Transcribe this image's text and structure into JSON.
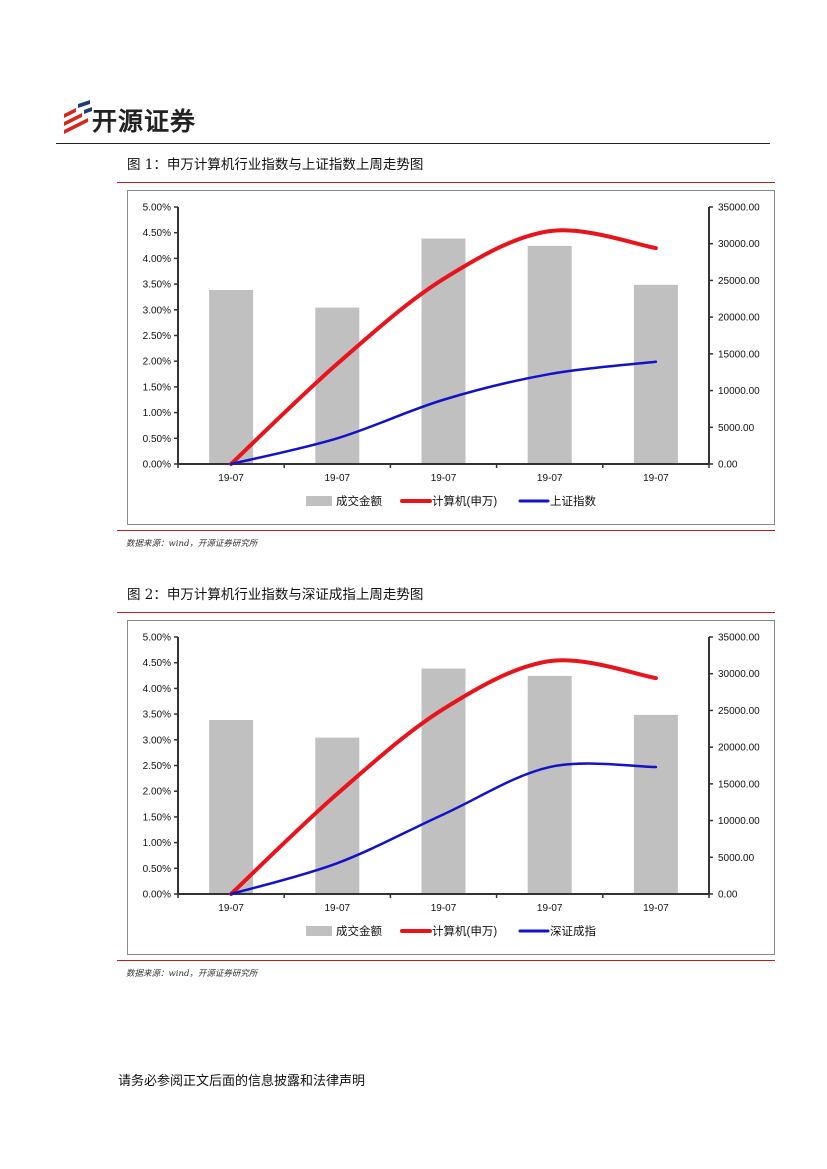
{
  "header": {
    "company_name": "开源证券",
    "colors": {
      "logo_red": "#d9261c",
      "logo_navy": "#1f3a78",
      "rule_red": "#c8191e"
    }
  },
  "figures": [
    {
      "caption": "图 1：申万计算机行业指数与上证指数上周走势图",
      "source": "数据来源：wind，开源证券研究所"
    },
    {
      "caption": "图 2：申万计算机行业指数与深证成指上周走势图",
      "source": "数据来源：wind，开源证券研究所"
    }
  ],
  "chart_data": [
    {
      "type": "bar+line",
      "title": "申万计算机行业指数与上证指数上周走势图",
      "categories": [
        "19-07",
        "19-07",
        "19-07",
        "19-07",
        "19-07"
      ],
      "y_left": {
        "min": 0,
        "max": 5,
        "step": 0.5,
        "ticks": [
          "0.00%",
          "0.50%",
          "1.00%",
          "1.50%",
          "2.00%",
          "2.50%",
          "3.00%",
          "3.50%",
          "4.00%",
          "4.50%",
          "5.00%"
        ]
      },
      "y_right": {
        "min": 0,
        "max": 35000,
        "step": 5000,
        "ticks": [
          "0.00",
          "5000.00",
          "10000.00",
          "15000.00",
          "20000.00",
          "25000.00",
          "30000.00",
          "35000.00"
        ]
      },
      "series": [
        {
          "name": "成交金额",
          "kind": "bar",
          "axis": "right",
          "color": "#c0c0c0",
          "values": [
            23700,
            21300,
            30700,
            29700,
            24400
          ]
        },
        {
          "name": "计算机(申万)",
          "kind": "line",
          "axis": "left",
          "color": "#e8141b",
          "values": [
            0.0,
            1.95,
            3.6,
            4.53,
            4.2
          ]
        },
        {
          "name": "上证指数",
          "kind": "line",
          "axis": "left",
          "color": "#1212c8",
          "values": [
            0.0,
            0.5,
            1.25,
            1.75,
            1.99
          ]
        }
      ],
      "legend": [
        "成交金额",
        "计算机(申万)",
        "上证指数"
      ]
    },
    {
      "type": "bar+line",
      "title": "申万计算机行业指数与深证成指上周走势图",
      "categories": [
        "19-07",
        "19-07",
        "19-07",
        "19-07",
        "19-07"
      ],
      "y_left": {
        "min": 0,
        "max": 5,
        "step": 0.5,
        "ticks": [
          "0.00%",
          "0.50%",
          "1.00%",
          "1.50%",
          "2.00%",
          "2.50%",
          "3.00%",
          "3.50%",
          "4.00%",
          "4.50%",
          "5.00%"
        ]
      },
      "y_right": {
        "min": 0,
        "max": 35000,
        "step": 5000,
        "ticks": [
          "0.00",
          "5000.00",
          "10000.00",
          "15000.00",
          "20000.00",
          "25000.00",
          "30000.00",
          "35000.00"
        ]
      },
      "series": [
        {
          "name": "成交金额",
          "kind": "bar",
          "axis": "right",
          "color": "#c0c0c0",
          "values": [
            23700,
            21300,
            30700,
            29700,
            24400
          ]
        },
        {
          "name": "计算机(申万)",
          "kind": "line",
          "axis": "left",
          "color": "#e8141b",
          "values": [
            0.0,
            1.95,
            3.6,
            4.53,
            4.2
          ]
        },
        {
          "name": "深证成指",
          "kind": "line",
          "axis": "left",
          "color": "#1212c8",
          "values": [
            0.0,
            0.6,
            1.55,
            2.47,
            2.47
          ]
        }
      ],
      "legend": [
        "成交金额",
        "计算机(申万)",
        "深证成指"
      ]
    }
  ],
  "footer": {
    "disclaimer": "请务必参阅正文后面的信息披露和法律声明"
  }
}
